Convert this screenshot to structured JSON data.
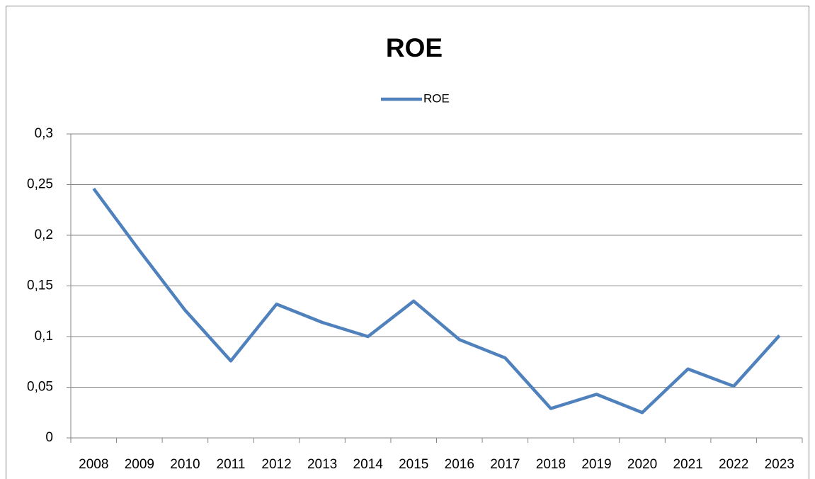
{
  "chart_data": {
    "type": "line",
    "title": "ROE",
    "categories": [
      "2008",
      "2009",
      "2010",
      "2011",
      "2012",
      "2013",
      "2014",
      "2015",
      "2016",
      "2017",
      "2018",
      "2019",
      "2020",
      "2021",
      "2022",
      "2023"
    ],
    "series": [
      {
        "name": "ROE",
        "color": "#4f81bd",
        "values": [
          0.246,
          0.185,
          0.126,
          0.076,
          0.132,
          0.114,
          0.1,
          0.135,
          0.097,
          0.079,
          0.029,
          0.043,
          0.025,
          0.068,
          0.051,
          0.101
        ]
      }
    ],
    "ylim": [
      0,
      0.3
    ],
    "yticks": [
      0,
      {
        "value": 0.05,
        "label": "0,05"
      },
      {
        "value": 0.1,
        "label": "0,1"
      },
      {
        "value": 0.15,
        "label": "0,15"
      },
      {
        "value": 0.2,
        "label": "0,2"
      },
      {
        "value": 0.25,
        "label": "0,25"
      },
      {
        "value": 0.3,
        "label": "0,3"
      }
    ],
    "grid": true,
    "legend": "top"
  }
}
